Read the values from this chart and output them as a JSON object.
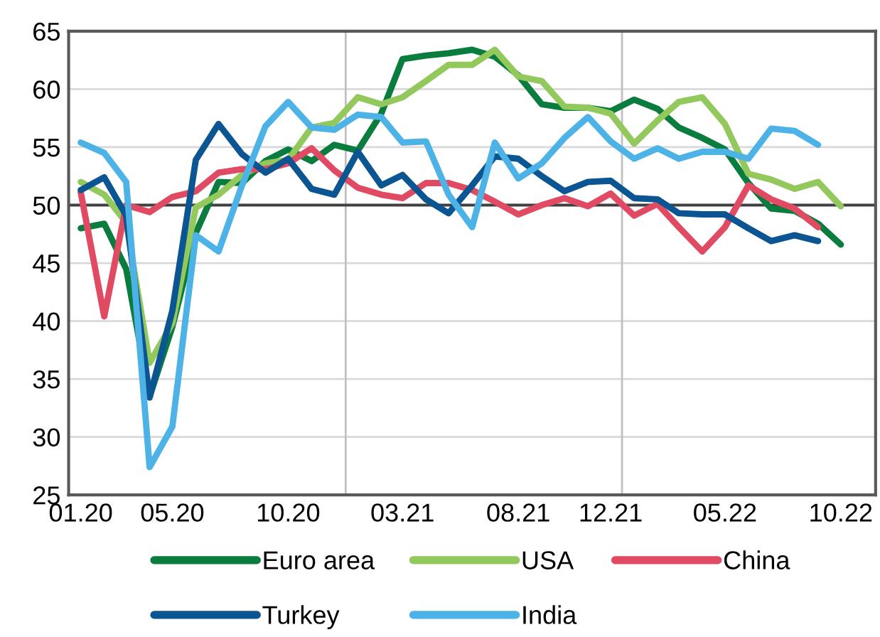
{
  "chart_data": {
    "type": "line",
    "x": [
      "2020-01",
      "2020-02",
      "2020-03",
      "2020-04",
      "2020-05",
      "2020-06",
      "2020-07",
      "2020-08",
      "2020-09",
      "2020-10",
      "2020-11",
      "2020-12",
      "2021-01",
      "2021-02",
      "2021-03",
      "2021-04",
      "2021-05",
      "2021-06",
      "2021-07",
      "2021-08",
      "2021-09",
      "2021-10",
      "2021-11",
      "2021-12",
      "2022-01",
      "2022-02",
      "2022-03",
      "2022-04",
      "2022-05",
      "2022-06",
      "2022-07",
      "2022-08",
      "2022-09",
      "2022-10"
    ],
    "series": [
      {
        "name": "Euro area",
        "color": "#0a7d3e",
        "values": [
          48.0,
          48.4,
          44.5,
          33.5,
          39.5,
          47.6,
          52.0,
          51.9,
          53.8,
          54.8,
          53.8,
          55.2,
          54.7,
          57.9,
          62.6,
          62.9,
          63.1,
          63.4,
          62.8,
          61.2,
          58.7,
          58.4,
          58.4,
          58.1,
          59.1,
          58.3,
          56.7,
          55.8,
          54.8,
          51.9,
          49.7,
          49.5,
          48.4,
          46.6
        ]
      },
      {
        "name": "USA",
        "color": "#92c85c",
        "values": [
          52.0,
          50.9,
          48.5,
          36.4,
          39.8,
          49.8,
          50.9,
          52.6,
          53.6,
          53.9,
          56.7,
          57.1,
          59.3,
          58.7,
          59.3,
          60.7,
          62.1,
          62.1,
          63.4,
          61.1,
          60.7,
          58.5,
          58.4,
          57.9,
          55.3,
          57.3,
          58.9,
          59.3,
          57.0,
          52.7,
          52.2,
          51.4,
          52.0,
          49.9
        ]
      },
      {
        "name": "China",
        "color": "#e04a62",
        "values": [
          51.1,
          40.4,
          50.0,
          49.4,
          50.7,
          51.2,
          52.8,
          53.1,
          53.1,
          53.6,
          54.9,
          53.0,
          51.5,
          50.9,
          50.6,
          51.9,
          51.9,
          51.3,
          50.3,
          49.2,
          50.0,
          50.6,
          49.9,
          51.0,
          49.1,
          50.1,
          48.1,
          46.0,
          48.1,
          51.7,
          50.5,
          49.7,
          48.1,
          null
        ]
      },
      {
        "name": "Turkey",
        "color": "#0a5592",
        "values": [
          51.3,
          52.4,
          49.1,
          33.4,
          40.9,
          53.9,
          57.0,
          54.4,
          52.8,
          54.0,
          51.4,
          50.9,
          54.6,
          51.7,
          52.6,
          50.5,
          49.3,
          51.7,
          54.2,
          54.0,
          52.5,
          51.2,
          52.0,
          52.1,
          50.6,
          50.5,
          49.3,
          49.2,
          49.2,
          48.0,
          46.9,
          47.4,
          46.9,
          null
        ]
      },
      {
        "name": "India",
        "color": "#4db3e6",
        "values": [
          55.4,
          54.5,
          52.0,
          27.4,
          30.9,
          47.4,
          46.0,
          51.7,
          56.8,
          58.9,
          56.7,
          56.5,
          57.8,
          57.6,
          55.4,
          55.5,
          50.9,
          48.1,
          55.4,
          52.3,
          53.6,
          55.8,
          57.6,
          55.5,
          54.0,
          54.9,
          54.0,
          54.6,
          54.6,
          54.0,
          56.6,
          56.4,
          55.2,
          null
        ]
      }
    ],
    "xlim": [
      "2019-12-16",
      "2022-11-16"
    ],
    "xticks": [
      {
        "value": "2020-01",
        "label": "01.20"
      },
      {
        "value": "2020-05",
        "label": "05.20"
      },
      {
        "value": "2020-10",
        "label": "10.20"
      },
      {
        "value": "2021-03",
        "label": "03.21"
      },
      {
        "value": "2021-08",
        "label": "08.21"
      },
      {
        "value": "2021-12",
        "label": "12.21"
      },
      {
        "value": "2022-05",
        "label": "05.22"
      },
      {
        "value": "2022-10",
        "label": "10.22"
      }
    ],
    "ylim": [
      25,
      65
    ],
    "yticks": [
      25,
      30,
      35,
      40,
      45,
      50,
      55,
      60,
      65
    ],
    "grid": "y",
    "ref_lines": [
      {
        "axis": "y",
        "value": 50,
        "color": "#404040"
      },
      {
        "axis": "x",
        "value": "2020-12-16",
        "color": "#c0c0c0"
      },
      {
        "axis": "x",
        "value": "2021-12-16",
        "color": "#c0c0c0"
      }
    ],
    "legend": "bottom",
    "marker": "none",
    "line_style": "solid"
  }
}
